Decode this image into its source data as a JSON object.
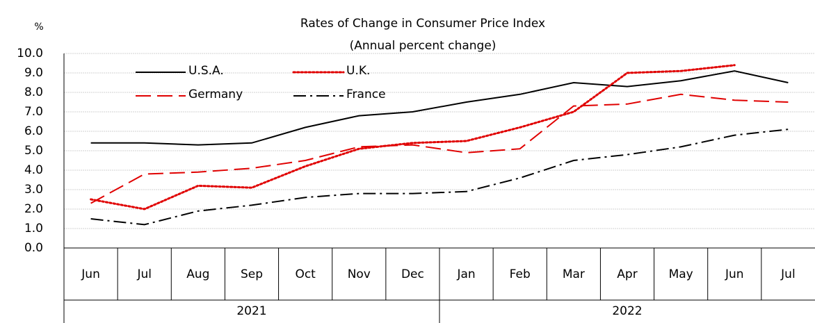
{
  "chart_data": {
    "type": "line",
    "title": "Rates of Change in Consumer Price Index",
    "subtitle": "(Annual percent change)",
    "y_label": "%",
    "categories": [
      "Jun",
      "Jul",
      "Aug",
      "Sep",
      "Oct",
      "Nov",
      "Dec",
      "Jan",
      "Feb",
      "Mar",
      "Apr",
      "May",
      "Jun",
      "Jul"
    ],
    "groups": [
      {
        "name": "2021",
        "count": 7
      },
      {
        "name": "2022",
        "count": 7
      }
    ],
    "series": [
      {
        "name": "U.S.A.",
        "color": "#000000",
        "dash": "solid",
        "values": [
          5.4,
          5.4,
          5.3,
          5.4,
          6.2,
          6.8,
          7.0,
          7.5,
          7.9,
          8.5,
          8.3,
          8.6,
          9.1,
          8.5
        ]
      },
      {
        "name": "U.K.",
        "color": "#e00000",
        "dash": "dotted",
        "values": [
          2.5,
          2.0,
          3.2,
          3.1,
          4.2,
          5.1,
          5.4,
          5.5,
          6.2,
          7.0,
          9.0,
          9.1,
          9.4,
          null
        ]
      },
      {
        "name": "Germany",
        "color": "#e00000",
        "dash": "dashed",
        "values": [
          2.3,
          3.8,
          3.9,
          4.1,
          4.5,
          5.2,
          5.3,
          4.9,
          5.1,
          7.3,
          7.4,
          7.9,
          7.6,
          7.5
        ]
      },
      {
        "name": "France",
        "color": "#000000",
        "dash": "dashdot",
        "values": [
          1.5,
          1.2,
          1.9,
          2.2,
          2.6,
          2.8,
          2.8,
          2.9,
          3.6,
          4.5,
          4.8,
          5.2,
          5.8,
          6.1
        ]
      }
    ],
    "ylim": [
      0,
      10
    ],
    "yticks": [
      {
        "value": 0,
        "label": "0.0"
      },
      {
        "value": 1,
        "label": "1.0"
      },
      {
        "value": 2,
        "label": "2.0"
      },
      {
        "value": 3,
        "label": "3.0"
      },
      {
        "value": 4,
        "label": "4.0"
      },
      {
        "value": 5,
        "label": "5.0"
      },
      {
        "value": 6,
        "label": "6.0"
      },
      {
        "value": 7,
        "label": "7.0"
      },
      {
        "value": 8,
        "label": "8.0"
      },
      {
        "value": 9,
        "label": "9.0"
      },
      {
        "value": 10,
        "label": "10.0"
      }
    ],
    "grid": true,
    "legend": "upper left"
  }
}
